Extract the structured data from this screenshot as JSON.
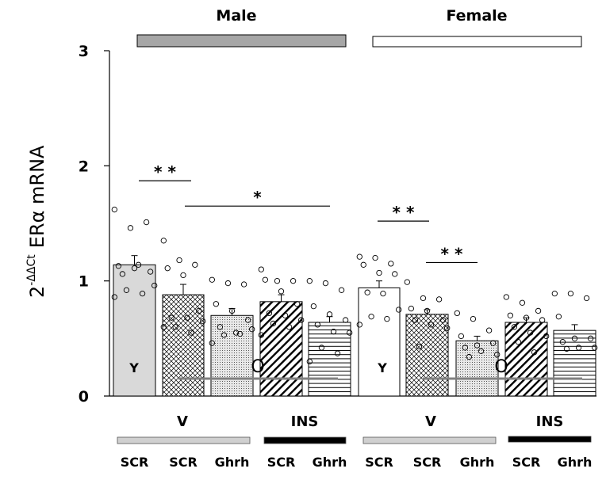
{
  "chart_data": {
    "type": "bar",
    "title": "",
    "ylabel_base": "2",
    "ylabel_sup": "-ΔΔCt",
    "ylabel_main": "ERα mRNA",
    "ylim": [
      0,
      3
    ],
    "yticks": [
      "0",
      "1",
      "2",
      "3"
    ],
    "groups": [
      {
        "name": "Male",
        "header_color": "#a6a6a6"
      },
      {
        "name": "Female",
        "header_color": "#ffffff"
      }
    ],
    "treatment_labels": [
      {
        "name": "V",
        "color": "#d0d0d0"
      },
      {
        "name": "INS",
        "color": "#000000"
      },
      {
        "name": "V",
        "color": "#d0d0d0"
      },
      {
        "name": "INS",
        "color": "#000000"
      }
    ],
    "categories": [
      "SCR",
      "SCR",
      "Ghrh",
      "SCR",
      "Ghrh",
      "SCR",
      "SCR",
      "Ghrh",
      "SCR",
      "Ghrh"
    ],
    "age_labels": {
      "young": "Y",
      "old": "O"
    },
    "bars": [
      {
        "sex": "Male",
        "treatment": "V",
        "shRNA": "SCR",
        "age": "Y",
        "value": 1.14,
        "sem": 0.08,
        "pattern": "solid-lightgray",
        "points": [
          1.62,
          1.46,
          1.51,
          1.13,
          1.11,
          1.08,
          1.06,
          1.14,
          0.96,
          0.92,
          0.89,
          0.86
        ]
      },
      {
        "sex": "Male",
        "treatment": "V",
        "shRNA": "SCR",
        "age": "O",
        "value": 0.88,
        "sem": 0.09,
        "pattern": "crosshatch",
        "points": [
          1.35,
          1.18,
          1.14,
          1.11,
          1.05,
          0.74,
          0.68,
          0.68,
          0.65,
          0.6,
          0.55,
          0.6
        ]
      },
      {
        "sex": "Male",
        "treatment": "V",
        "shRNA": "Ghrh",
        "age": "O",
        "value": 0.7,
        "sem": 0.06,
        "pattern": "dots",
        "points": [
          1.01,
          0.98,
          0.97,
          0.8,
          0.74,
          0.66,
          0.6,
          0.55,
          0.58,
          0.53,
          0.54,
          0.46
        ]
      },
      {
        "sex": "Male",
        "treatment": "INS",
        "shRNA": "SCR",
        "age": "O",
        "value": 0.82,
        "sem": 0.06,
        "pattern": "diagonal",
        "points": [
          1.1,
          1.0,
          1.0,
          1.01,
          0.91,
          0.8,
          0.72,
          0.7,
          0.66,
          0.63,
          0.6,
          0.53
        ]
      },
      {
        "sex": "Male",
        "treatment": "INS",
        "shRNA": "Ghrh",
        "age": "O",
        "value": 0.64,
        "sem": 0.05,
        "pattern": "horizontal",
        "points": [
          1.0,
          0.98,
          0.92,
          0.78,
          0.71,
          0.66,
          0.62,
          0.56,
          0.55,
          0.42,
          0.37,
          0.3
        ]
      },
      {
        "sex": "Female",
        "treatment": "V",
        "shRNA": "SCR",
        "age": "Y",
        "value": 0.94,
        "sem": 0.06,
        "pattern": "solid-white",
        "points": [
          1.21,
          1.2,
          1.15,
          1.14,
          1.07,
          1.06,
          0.9,
          0.89,
          0.75,
          0.69,
          0.67,
          0.62
        ]
      },
      {
        "sex": "Female",
        "treatment": "V",
        "shRNA": "SCR",
        "age": "O",
        "value": 0.71,
        "sem": 0.04,
        "pattern": "crosshatch",
        "points": [
          0.99,
          0.85,
          0.84,
          0.76,
          0.74,
          0.66,
          0.66,
          0.62,
          0.59,
          0.43
        ]
      },
      {
        "sex": "Female",
        "treatment": "V",
        "shRNA": "Ghrh",
        "age": "O",
        "value": 0.48,
        "sem": 0.04,
        "pattern": "dots",
        "points": [
          0.72,
          0.67,
          0.57,
          0.52,
          0.44,
          0.46,
          0.42,
          0.39,
          0.36,
          0.34
        ]
      },
      {
        "sex": "Female",
        "treatment": "INS",
        "shRNA": "SCR",
        "age": "O",
        "value": 0.64,
        "sem": 0.04,
        "pattern": "diagonal",
        "points": [
          0.86,
          0.81,
          0.74,
          0.7,
          0.68,
          0.66,
          0.6,
          0.55,
          0.52,
          0.47,
          0.38
        ]
      },
      {
        "sex": "Female",
        "treatment": "INS",
        "shRNA": "Ghrh",
        "age": "O",
        "value": 0.57,
        "sem": 0.05,
        "pattern": "horizontal",
        "points": [
          0.89,
          0.89,
          0.85,
          0.69,
          0.5,
          0.5,
          0.47,
          0.42,
          0.42,
          0.41
        ]
      }
    ],
    "significance": [
      {
        "from": 0,
        "to": 1,
        "label": "**",
        "y": 1.87
      },
      {
        "from": 1,
        "to": 4,
        "label": "*",
        "y": 1.65
      },
      {
        "from": 5,
        "to": 6,
        "label": "**",
        "y": 1.52
      },
      {
        "from": 6,
        "to": 7,
        "label": "**",
        "y": 1.16
      }
    ],
    "grid": false,
    "legend": "none"
  }
}
